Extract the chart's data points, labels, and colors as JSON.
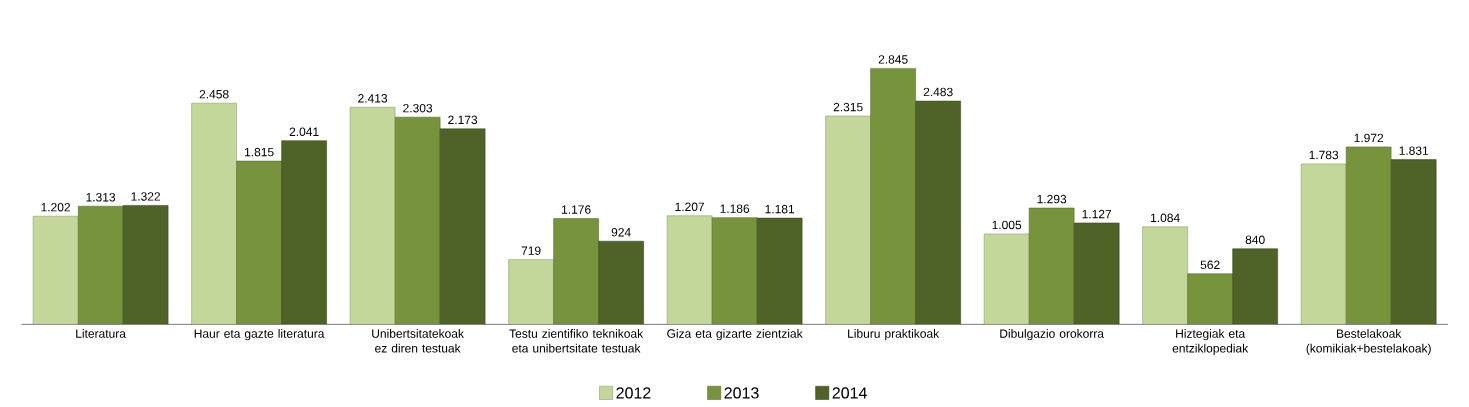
{
  "chart_data": {
    "type": "bar",
    "categories": [
      "Literatura",
      "Haur eta gazte literatura",
      "Unibertsitatekoak ez diren testuak",
      "Testu zientifiko teknikoak eta unibertsitate testuak",
      "Giza eta gizarte zientziak",
      "Liburu praktikoak",
      "Dibulgazio orokorra",
      "Hiztegiak eta entziklopediak",
      "Bestelakoak (komikiak+bestelakoak)"
    ],
    "series": [
      {
        "name": "2012",
        "color": "#c4d79b",
        "values": [
          1202,
          2458,
          2413,
          719,
          1207,
          2315,
          1005,
          1084,
          1783
        ],
        "value_labels": [
          "1.202",
          "2.458",
          "2.413",
          "719",
          "1.207",
          "2.315",
          "1.005",
          "1.084",
          "1.783"
        ]
      },
      {
        "name": "2013",
        "color": "#77933c",
        "values": [
          1313,
          1815,
          2303,
          1176,
          1186,
          2845,
          1293,
          562,
          1972
        ],
        "value_labels": [
          "1.313",
          "1.815",
          "2.303",
          "1.176",
          "1.186",
          "2.845",
          "1.293",
          "562",
          "1.972"
        ]
      },
      {
        "name": "2014",
        "color": "#4f6228",
        "values": [
          1322,
          2041,
          2173,
          924,
          1181,
          2483,
          1127,
          840,
          1831
        ],
        "value_labels": [
          "1.322",
          "2.041",
          "2.173",
          "924",
          "1.181",
          "2.483",
          "1.127",
          "840",
          "1.831"
        ]
      }
    ],
    "legend": "bottom"
  }
}
